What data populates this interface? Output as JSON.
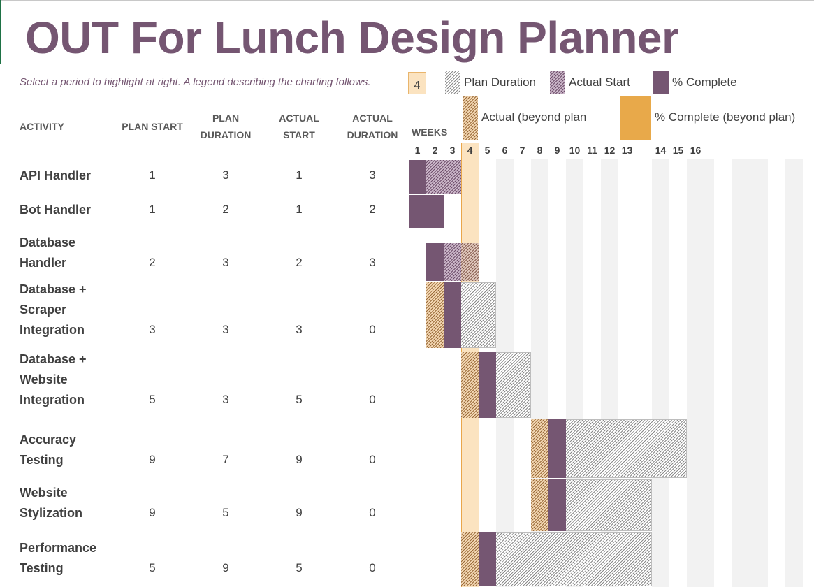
{
  "title": "OUT For Lunch Design Planner",
  "subtitle": "Select a period to highlight at right.  A legend describing the charting follows.",
  "period_highlight": "4",
  "legend": {
    "plan_duration": "Plan Duration",
    "actual_start": "Actual Start",
    "percent_complete": "% Complete",
    "actual_beyond": "Actual (beyond plan",
    "percent_beyond": "% Complete (beyond plan)"
  },
  "colors": {
    "accent": "#755672",
    "highlight": "#fbe3c0",
    "beyond": "#e8a94a",
    "stripe": "#f2f2f2"
  },
  "columns": {
    "activity": "ACTIVITY",
    "plan_start": "PLAN START",
    "plan_duration": [
      "PLAN",
      "DURATION"
    ],
    "actual_start": [
      "ACTUAL",
      "START"
    ],
    "actual_duration": [
      "ACTUAL",
      "DURATION"
    ],
    "weeks": "WEEKS"
  },
  "weeks": [
    "1",
    "2",
    "3",
    "4",
    "5",
    "6",
    "7",
    "8",
    "9",
    "10",
    "11",
    "12",
    "13",
    "14",
    "15",
    "16"
  ],
  "activities": [
    {
      "name": [
        "API Handler"
      ],
      "plan_start": "1",
      "plan_duration": "3",
      "actual_start": "1",
      "actual_duration": "3"
    },
    {
      "name": [
        "Bot Handler"
      ],
      "plan_start": "1",
      "plan_duration": "2",
      "actual_start": "1",
      "actual_duration": "2"
    },
    {
      "name": [
        "Database",
        "Handler"
      ],
      "plan_start": "2",
      "plan_duration": "3",
      "actual_start": "2",
      "actual_duration": "3"
    },
    {
      "name": [
        "Database +",
        "Scraper",
        "Integration"
      ],
      "plan_start": "3",
      "plan_duration": "3",
      "actual_start": "3",
      "actual_duration": "0"
    },
    {
      "name": [
        "Database +",
        "Website",
        "Integration"
      ],
      "plan_start": "5",
      "plan_duration": "3",
      "actual_start": "5",
      "actual_duration": "0"
    },
    {
      "name": [
        "Accuracy",
        "Testing"
      ],
      "plan_start": "9",
      "plan_duration": "7",
      "actual_start": "9",
      "actual_duration": "0"
    },
    {
      "name": [
        "Website",
        "Stylization"
      ],
      "plan_start": "9",
      "plan_duration": "5",
      "actual_start": "9",
      "actual_duration": "0"
    },
    {
      "name": [
        "Performance",
        "Testing"
      ],
      "plan_start": "5",
      "plan_duration": "9",
      "actual_start": "5",
      "actual_duration": "0"
    }
  ]
}
